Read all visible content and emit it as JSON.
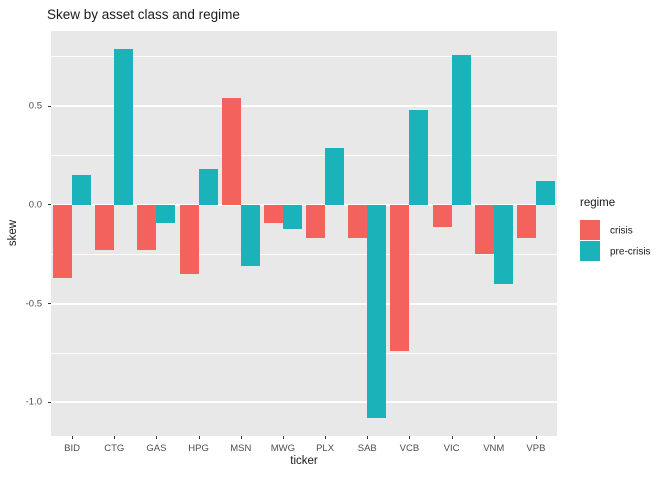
{
  "title": "Skew by asset class and regime",
  "axes": {
    "x_title": "ticker",
    "y_title": "skew",
    "y_tick_labels": [
      "0.5",
      "0.0",
      "-0.5",
      "-1.0"
    ]
  },
  "legend": {
    "title": "regime",
    "items": [
      {
        "label": "crisis",
        "color": "#F4625D"
      },
      {
        "label": "pre-crisis",
        "color": "#19B3B9"
      }
    ]
  },
  "colors": {
    "crisis": "#F4625D",
    "pre_crisis": "#19B3B9",
    "panel_background": "#E8E8E8",
    "gridline": "#FFFFFF",
    "axis_text": "#4D4D4D",
    "title_text": "#1A1A1A"
  },
  "chart_data": {
    "type": "bar",
    "bar_grouping": "dodged",
    "title": "Skew by asset class and regime",
    "xlabel": "ticker",
    "ylabel": "skew",
    "categories": [
      "BID",
      "CTG",
      "GAS",
      "HPG",
      "MSN",
      "MWG",
      "PLX",
      "SAB",
      "VCB",
      "VIC",
      "VNM",
      "VPB"
    ],
    "series": [
      {
        "name": "crisis",
        "color": "#F4625D",
        "values": [
          -0.37,
          -0.23,
          -0.23,
          -0.35,
          0.54,
          -0.09,
          -0.17,
          -0.17,
          -0.74,
          -0.11,
          -0.25,
          -0.17
        ]
      },
      {
        "name": "pre-crisis",
        "color": "#19B3B9",
        "values": [
          0.15,
          0.79,
          -0.09,
          0.18,
          -0.31,
          -0.12,
          0.29,
          -1.08,
          0.48,
          0.76,
          -0.4,
          0.12
        ]
      }
    ],
    "ylim": [
      -1.17,
      0.88
    ],
    "y_major_ticks": [
      0.5,
      0.0,
      -0.5,
      -1.0
    ],
    "y_minor_ticks": [
      0.75,
      0.25,
      -0.25,
      -0.75
    ],
    "grid": true,
    "legend_title": "regime",
    "legend_position": "right"
  }
}
